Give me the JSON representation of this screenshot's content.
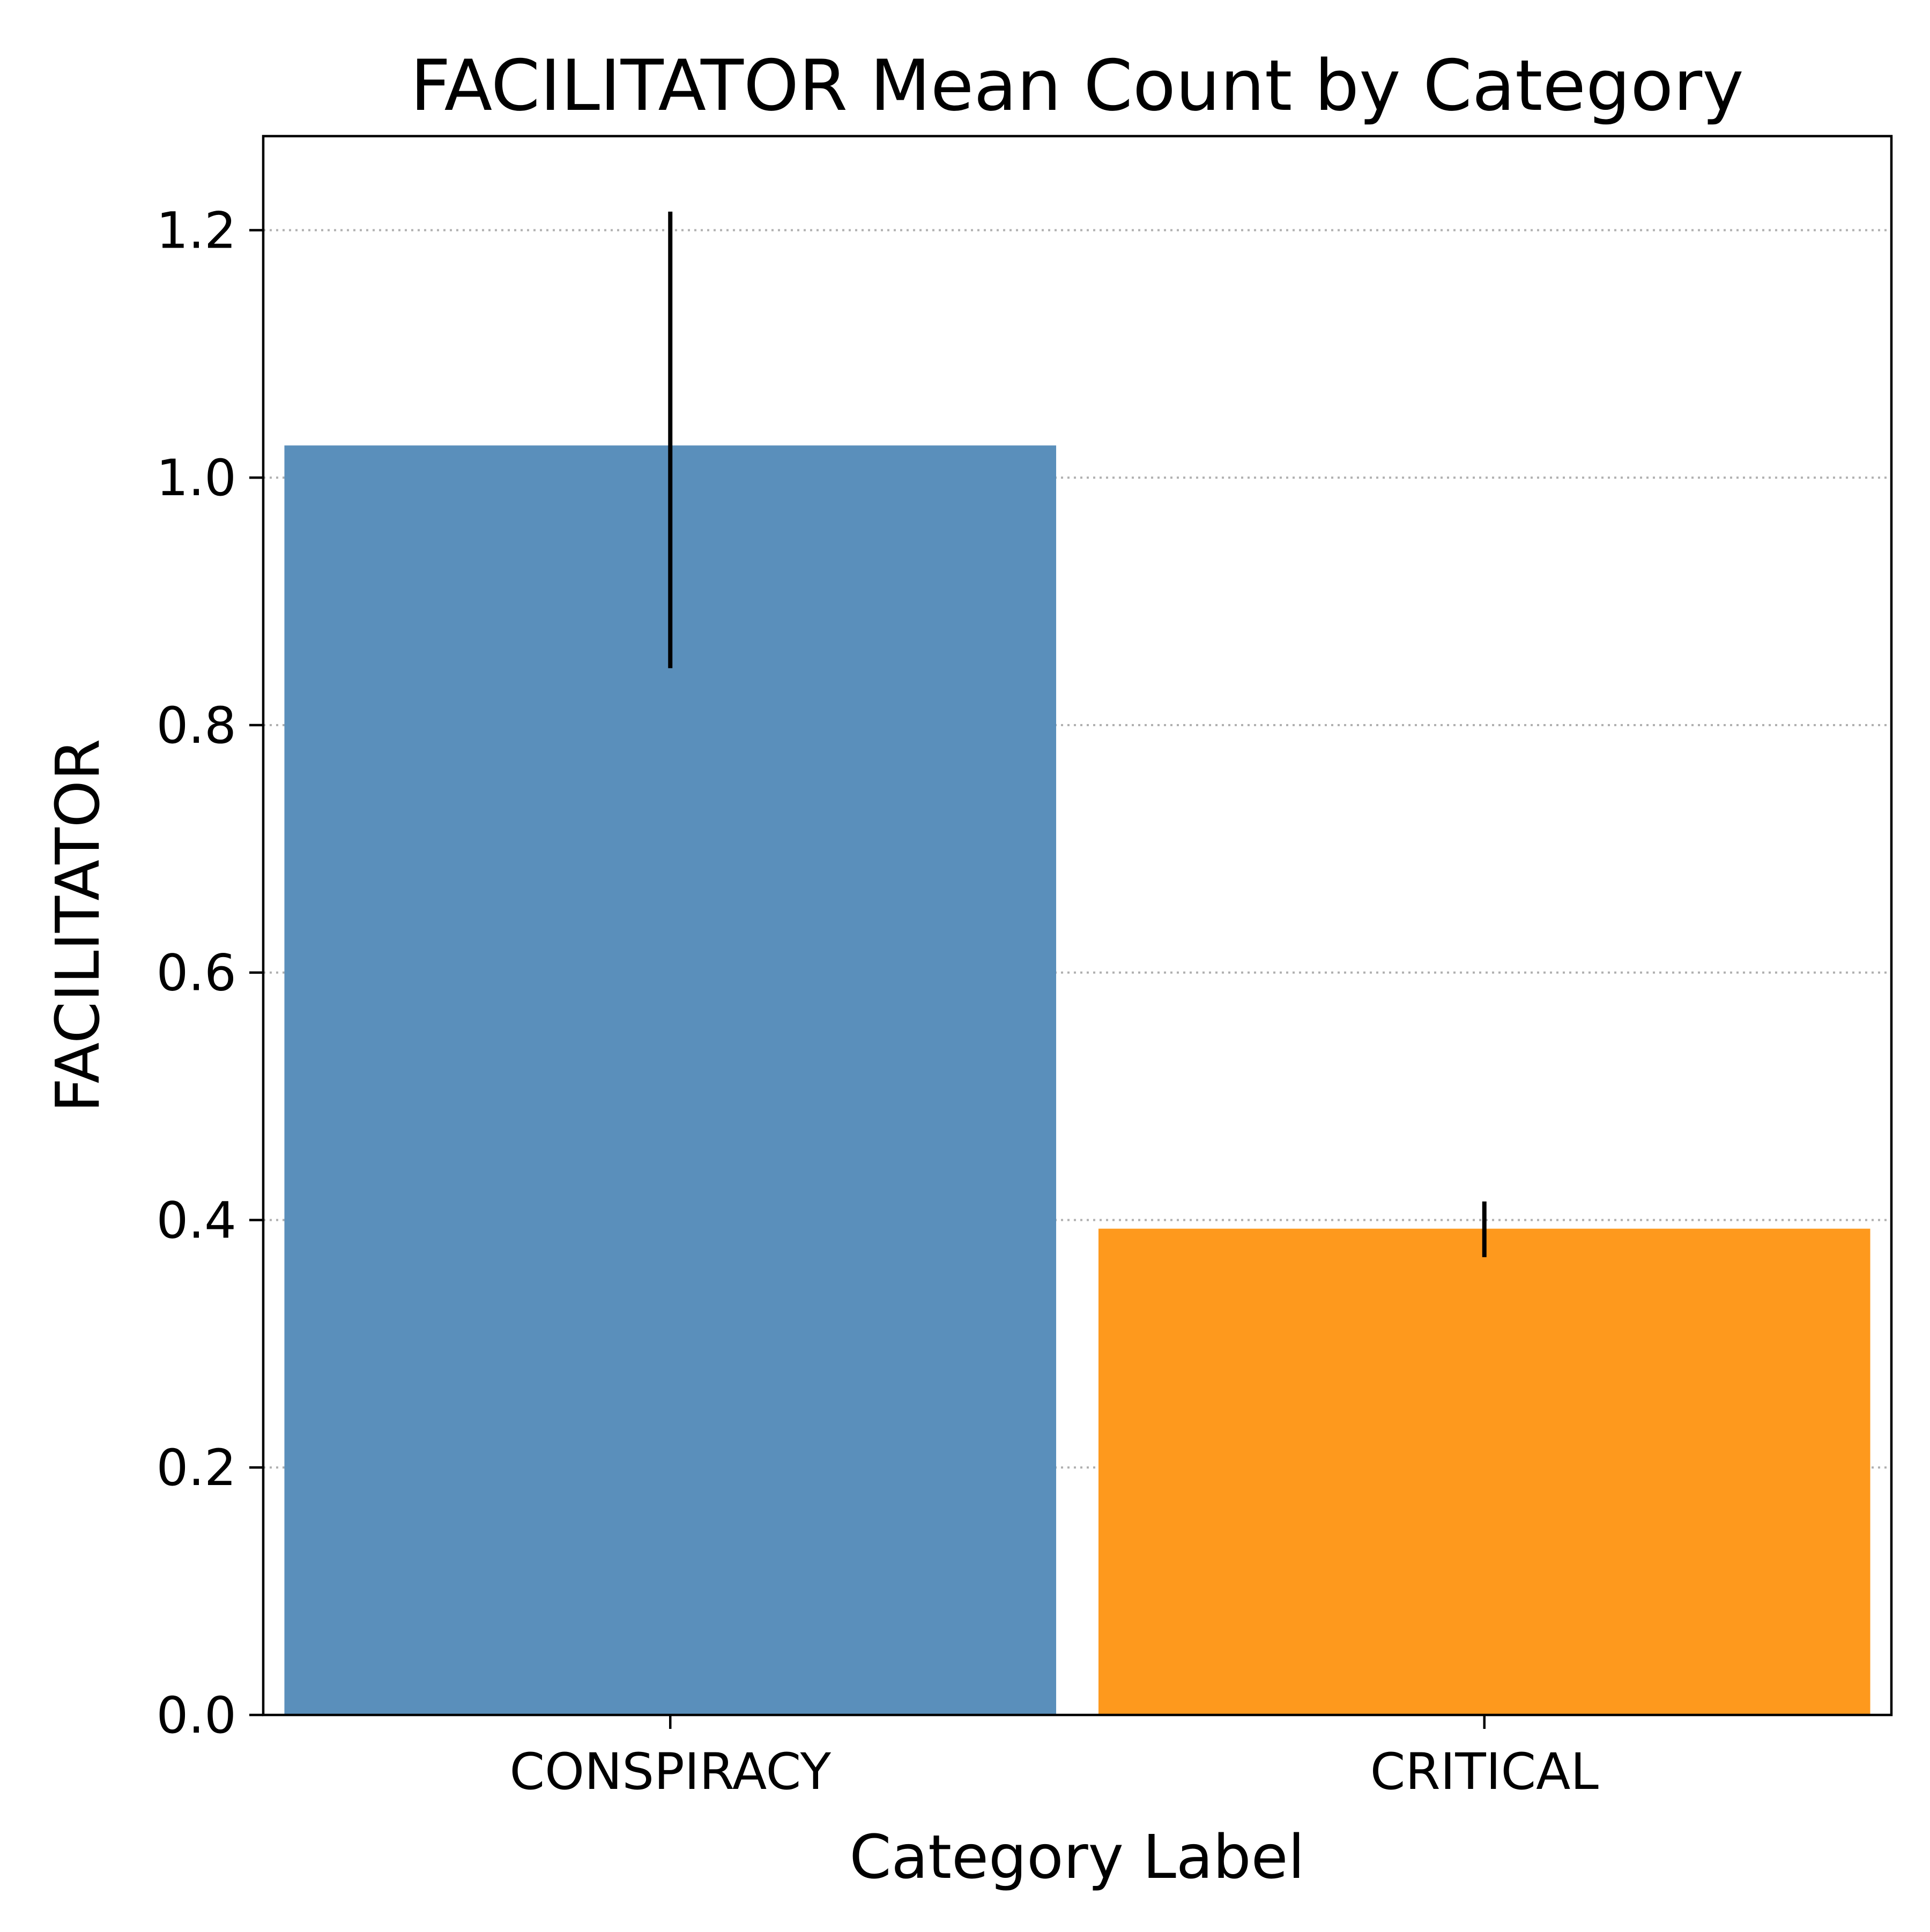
{
  "chart_data": {
    "type": "bar",
    "title": "FACILITATOR Mean Count by Category",
    "xlabel": "Category Label",
    "ylabel": "FACILITATOR",
    "categories": [
      "CONSPIRACY",
      "CRITICAL"
    ],
    "values": [
      1.026,
      0.393
    ],
    "error_bars": [
      {
        "category": "CONSPIRACY",
        "low": 0.846,
        "high": 1.215
      },
      {
        "category": "CRITICAL",
        "low": 0.37,
        "high": 0.415
      }
    ],
    "bar_colors": [
      "#5a8fbb",
      "#fe991d"
    ],
    "error_bar_color": "#000000",
    "ylim": [
      0,
      1.276
    ],
    "yticks": [
      0.0,
      0.2,
      0.4,
      0.6,
      0.8,
      1.0,
      1.2
    ],
    "ytick_labels": [
      "0.0",
      "0.2",
      "0.4",
      "0.6",
      "0.8",
      "1.0",
      "1.2"
    ],
    "grid": {
      "axis": "y",
      "style": "dotted",
      "color": "#b0b0b0"
    }
  }
}
